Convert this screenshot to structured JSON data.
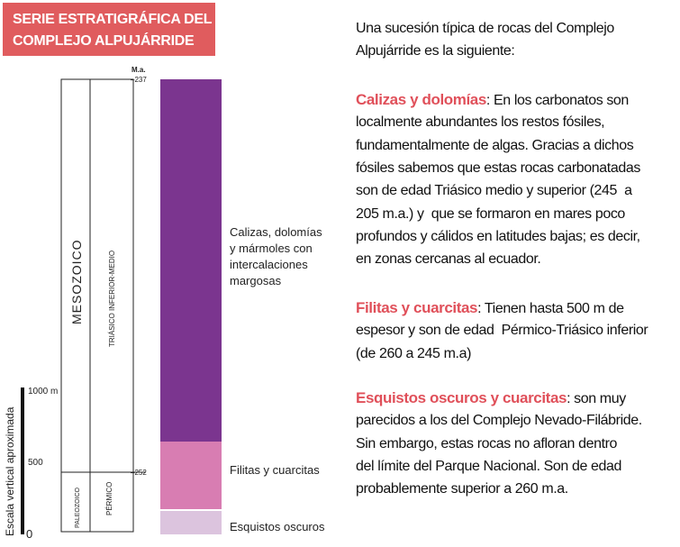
{
  "title": {
    "lines": [
      "SERIE ESTRATIGRÁFICA DEL",
      "COMPLEJO ALPUJÁRRIDE"
    ]
  },
  "scale": {
    "label": "Escala vertical aproximada",
    "ticks": [
      "1000 m",
      "500",
      "0"
    ]
  },
  "column": {
    "unit": "M.a.",
    "ages": [
      "–237",
      "–252"
    ],
    "eras": [
      "MESOZOICO",
      "PALEOZOICO"
    ],
    "periods": [
      "TRIÁSICO INFERIOR-MEDIO",
      "PÉRMICO"
    ]
  },
  "layers": [
    {
      "label_lines": [
        "Calizas, dolomías",
        "y mármoles con",
        "intercalaciones",
        "margosas"
      ]
    },
    {
      "label_lines": [
        "Filitas y cuarcitas"
      ]
    },
    {
      "label_lines": [
        "Esquistos oscuros"
      ]
    }
  ],
  "text": {
    "intro": [
      "Una sucesión típica de rocas del Complejo",
      "Alpujárride es la siguiente:"
    ],
    "sections": [
      {
        "heading": "Calizas y dolomías",
        "lines": [
          ": En los carbonatos son",
          "localmente abundantes los restos fósiles,",
          "fundamentalmente de algas. Gracias a dichos",
          "fósiles sabemos que estas rocas carbonatadas",
          "son de edad Triásico medio y superior (245  a",
          "205 m.a.) y  que se formaron en mares poco",
          "profundos y cálidos en latitudes bajas; es decir,",
          "en zonas cercanas al ecuador."
        ]
      },
      {
        "heading": "Filitas y cuarcitas",
        "lines": [
          ": Tienen hasta 500 m de",
          "espesor y son de edad  Pérmico-Triásico inferior",
          "(de 260 a 245 m.a)"
        ]
      },
      {
        "heading": "Esquistos oscuros y cuarcitas",
        "lines": [
          ": son muy",
          "parecidos a los del Complejo Nevado-Filábride.",
          "Sin embargo, estas rocas no afloran dentro",
          "del límite del Parque Nacional. Son de edad",
          "probablemente superior a 260 m.a."
        ]
      }
    ]
  }
}
